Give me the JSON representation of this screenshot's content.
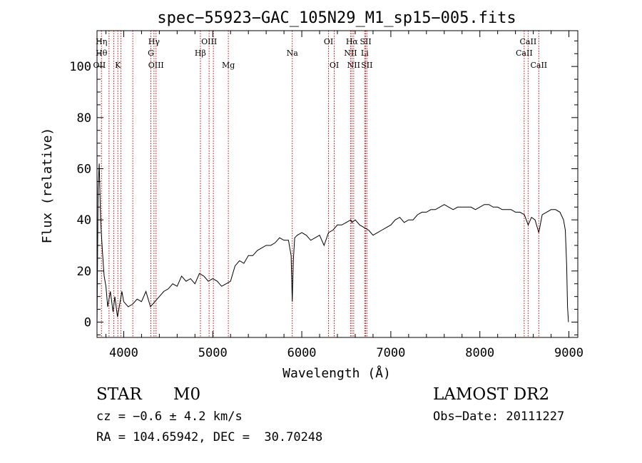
{
  "chart_data": {
    "type": "line",
    "title": "spec−55923−GAC_105N29_M1_sp15−005.fits",
    "xlabel": "Wavelength (Å)",
    "ylabel": "Flux (relative)",
    "xlim": [
      3700,
      9100
    ],
    "ylim": [
      -6,
      114
    ],
    "xticks": [
      4000,
      5000,
      6000,
      7000,
      8000,
      9000
    ],
    "yticks": [
      0,
      20,
      40,
      60,
      80,
      100
    ],
    "grid": false,
    "line_color": "#000000",
    "marker_color": "#cc0000",
    "series": [
      {
        "x": [
          3700,
          3712,
          3725,
          3740,
          3760,
          3780,
          3800,
          3820,
          3850,
          3880,
          3900,
          3930,
          3950,
          3980,
          4000,
          4050,
          4100,
          4150,
          4200,
          4250,
          4300,
          4350,
          4400,
          4450,
          4500,
          4550,
          4600,
          4650,
          4700,
          4750,
          4800,
          4850,
          4900,
          4950,
          5000,
          5050,
          5100,
          5150,
          5200,
          5250,
          5300,
          5350,
          5400,
          5450,
          5500,
          5550,
          5600,
          5650,
          5700,
          5750,
          5800,
          5850,
          5880,
          5893,
          5905,
          5920,
          5950,
          6000,
          6050,
          6100,
          6150,
          6200,
          6250,
          6300,
          6350,
          6400,
          6450,
          6500,
          6550,
          6563,
          6600,
          6650,
          6700,
          6750,
          6800,
          6850,
          6900,
          6950,
          7000,
          7050,
          7100,
          7150,
          7200,
          7250,
          7300,
          7350,
          7400,
          7450,
          7500,
          7550,
          7600,
          7650,
          7700,
          7750,
          7800,
          7850,
          7900,
          7950,
          8000,
          8050,
          8100,
          8150,
          8200,
          8250,
          8300,
          8350,
          8400,
          8450,
          8500,
          8542,
          8580,
          8620,
          8662,
          8700,
          8750,
          8800,
          8850,
          8900,
          8940,
          8960,
          8975,
          8985,
          8995
        ],
        "y": [
          -2,
          52,
          62,
          40,
          28,
          18,
          14,
          6,
          12,
          4,
          10,
          2,
          6,
          12,
          8,
          6,
          7,
          9,
          8,
          12,
          6,
          8,
          10,
          12,
          13,
          15,
          14,
          18,
          16,
          17,
          15,
          19,
          18,
          16,
          17,
          16,
          14,
          15,
          16,
          22,
          24,
          23,
          26,
          26,
          28,
          29,
          30,
          30,
          31,
          33,
          32,
          32,
          26,
          8,
          24,
          33,
          34,
          35,
          34,
          32,
          33,
          34,
          30,
          35,
          36,
          38,
          38,
          39,
          40,
          39,
          40,
          38,
          37,
          36,
          34,
          35,
          36,
          37,
          38,
          40,
          41,
          39,
          40,
          40,
          42,
          43,
          43,
          44,
          44,
          45,
          46,
          45,
          44,
          45,
          45,
          45,
          45,
          44,
          45,
          46,
          46,
          45,
          45,
          44,
          44,
          44,
          43,
          43,
          42,
          38,
          41,
          40,
          35,
          42,
          43,
          44,
          44,
          43,
          40,
          36,
          22,
          6,
          0
        ]
      }
    ],
    "lines": [
      {
        "x": 3750,
        "labels": [
          "Hη",
          "Hθ",
          "OII"
        ]
      },
      {
        "x": 3835,
        "labels": []
      },
      {
        "x": 3889,
        "labels": []
      },
      {
        "x": 3934,
        "labels": [
          "K"
        ]
      },
      {
        "x": 3969,
        "labels": []
      },
      {
        "x": 4102,
        "labels": []
      },
      {
        "x": 4305,
        "labels": [
          "G"
        ]
      },
      {
        "x": 4340,
        "labels": [
          "Hγ"
        ]
      },
      {
        "x": 4363,
        "labels": [
          "OIII"
        ]
      },
      {
        "x": 4861,
        "labels": [
          "Hβ"
        ]
      },
      {
        "x": 4959,
        "labels": [
          "OIII"
        ]
      },
      {
        "x": 5007,
        "labels": []
      },
      {
        "x": 5175,
        "labels": [
          "Mg"
        ]
      },
      {
        "x": 5893,
        "labels": [
          "Na"
        ]
      },
      {
        "x": 6300,
        "labels": [
          "OI"
        ]
      },
      {
        "x": 6364,
        "labels": [
          "OI"
        ]
      },
      {
        "x": 6548,
        "labels": [
          "NII"
        ]
      },
      {
        "x": 6563,
        "labels": [
          "Hα"
        ]
      },
      {
        "x": 6583,
        "labels": [
          "NII"
        ]
      },
      {
        "x": 6707,
        "labels": [
          "Li"
        ]
      },
      {
        "x": 6717,
        "labels": [
          "SII"
        ]
      },
      {
        "x": 6731,
        "labels": [
          "SII"
        ]
      },
      {
        "x": 8498,
        "labels": [
          "CaII"
        ]
      },
      {
        "x": 8542,
        "labels": [
          "CaII"
        ]
      },
      {
        "x": 8662,
        "labels": [
          "CaII"
        ]
      }
    ],
    "line_labels": [
      {
        "text": "Hη",
        "x": 3750,
        "row": 0,
        "anchor": "middle"
      },
      {
        "text": "Hθ",
        "x": 3750,
        "row": 1,
        "anchor": "middle"
      },
      {
        "text": "OII",
        "x": 3727,
        "row": 2,
        "anchor": "middle"
      },
      {
        "text": "K",
        "x": 3934,
        "row": 2,
        "anchor": "middle"
      },
      {
        "text": "Hγ",
        "x": 4340,
        "row": 0,
        "anchor": "middle"
      },
      {
        "text": "G",
        "x": 4305,
        "row": 1,
        "anchor": "middle"
      },
      {
        "text": "OIII",
        "x": 4363,
        "row": 2,
        "anchor": "middle"
      },
      {
        "text": "OIII",
        "x": 4959,
        "row": 0,
        "anchor": "middle"
      },
      {
        "text": "Hβ",
        "x": 4861,
        "row": 1,
        "anchor": "middle"
      },
      {
        "text": "Mg",
        "x": 5175,
        "row": 2,
        "anchor": "middle"
      },
      {
        "text": "Na",
        "x": 5893,
        "row": 1,
        "anchor": "middle"
      },
      {
        "text": "OI",
        "x": 6300,
        "row": 0,
        "anchor": "middle"
      },
      {
        "text": "OI",
        "x": 6364,
        "row": 2,
        "anchor": "middle"
      },
      {
        "text": "Hα",
        "x": 6563,
        "row": 0,
        "anchor": "middle"
      },
      {
        "text": "SII",
        "x": 6717,
        "row": 0,
        "anchor": "middle"
      },
      {
        "text": "NII",
        "x": 6548,
        "row": 1,
        "anchor": "middle"
      },
      {
        "text": "Li",
        "x": 6707,
        "row": 1,
        "anchor": "middle"
      },
      {
        "text": "NII",
        "x": 6583,
        "row": 2,
        "anchor": "middle"
      },
      {
        "text": "SII",
        "x": 6731,
        "row": 2,
        "anchor": "middle"
      },
      {
        "text": "CaII",
        "x": 8498,
        "row": 1,
        "anchor": "middle"
      },
      {
        "text": "CaII",
        "x": 8542,
        "row": 0,
        "anchor": "middle"
      },
      {
        "text": "CaII",
        "x": 8662,
        "row": 2,
        "anchor": "middle"
      }
    ]
  },
  "info": {
    "object_class": "STAR",
    "subclass": "M0",
    "survey": "LAMOST DR2",
    "redshift": "cz = −0.6 ± 4.2 km/s",
    "obs_date": "Obs−Date: 20111227",
    "coords": "RA = 104.65942, DEC =  30.70248"
  }
}
